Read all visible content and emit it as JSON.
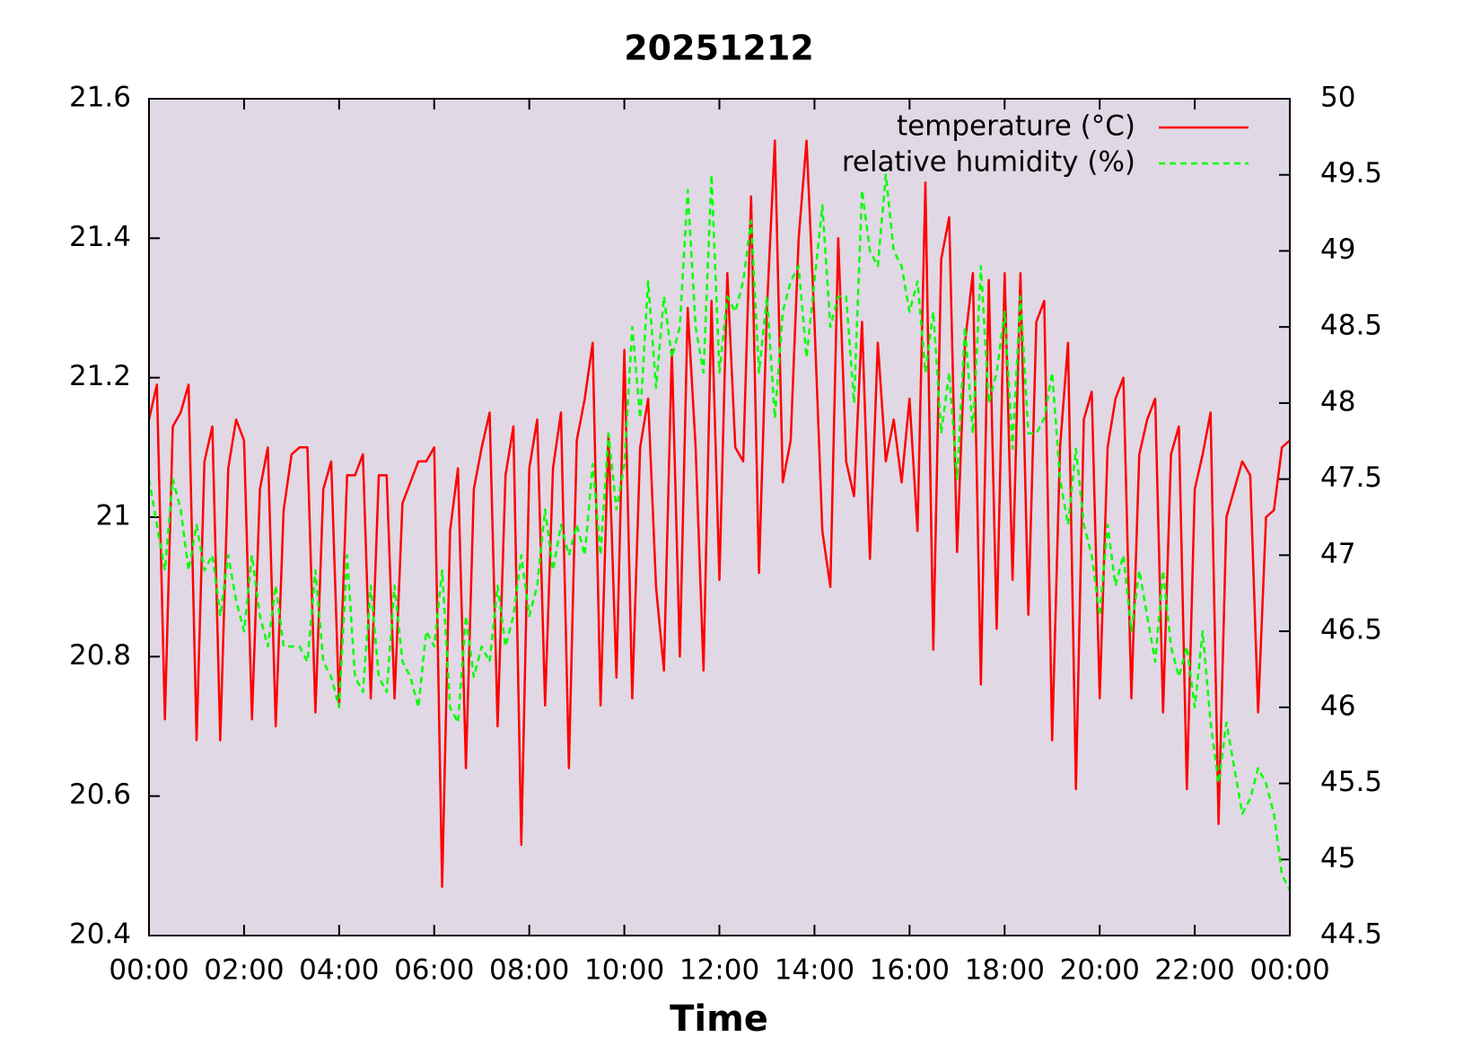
{
  "chart_data": {
    "type": "line",
    "title": "20251212",
    "xlabel": "Time",
    "x": [
      0,
      10,
      20,
      30,
      40,
      50,
      60,
      70,
      80,
      90,
      100,
      110,
      120,
      130,
      140,
      150,
      160,
      170,
      180,
      190,
      200,
      210,
      220,
      230,
      240,
      250,
      260,
      270,
      280,
      290,
      300,
      310,
      320,
      330,
      340,
      350,
      360,
      370,
      380,
      390,
      400,
      410,
      420,
      430,
      440,
      450,
      460,
      470,
      480,
      490,
      500,
      510,
      520,
      530,
      540,
      550,
      560,
      570,
      580,
      590,
      600,
      610,
      620,
      630,
      640,
      650,
      660,
      670,
      680,
      690,
      700,
      710,
      720,
      730,
      740,
      750,
      760,
      770,
      780,
      790,
      800,
      810,
      820,
      830,
      840,
      850,
      860,
      870,
      880,
      890,
      900,
      910,
      920,
      930,
      940,
      950,
      960,
      970,
      980,
      990,
      1000,
      1010,
      1020,
      1030,
      1040,
      1050,
      1060,
      1070,
      1080,
      1090,
      1100,
      1110,
      1120,
      1130,
      1140,
      1150,
      1160,
      1170,
      1180,
      1190,
      1200,
      1210,
      1220,
      1230,
      1240,
      1250,
      1260,
      1270,
      1280,
      1290,
      1300,
      1310,
      1320,
      1330,
      1340,
      1350,
      1360,
      1370,
      1380,
      1390,
      1400,
      1410,
      1420,
      1430,
      1440
    ],
    "series": [
      {
        "name": "temperature (°C)",
        "color": "#ff0000",
        "dashed": false,
        "values": [
          21.14,
          21.19,
          20.71,
          21.13,
          21.15,
          21.19,
          20.68,
          21.08,
          21.13,
          20.68,
          21.07,
          21.14,
          21.11,
          20.71,
          21.04,
          21.1,
          20.7,
          21.01,
          21.09,
          21.1,
          21.1,
          20.72,
          21.04,
          21.08,
          20.73,
          21.06,
          21.06,
          21.09,
          20.74,
          21.06,
          21.06,
          20.74,
          21.02,
          21.05,
          21.08,
          21.08,
          21.1,
          20.47,
          20.98,
          21.07,
          20.64,
          21.04,
          21.1,
          21.15,
          20.7,
          21.06,
          21.13,
          20.53,
          21.07,
          21.14,
          20.73,
          21.07,
          21.15,
          20.64,
          21.11,
          21.17,
          21.25,
          20.73,
          21.12,
          20.77,
          21.24,
          20.74,
          21.1,
          21.17,
          20.9,
          20.78,
          21.24,
          20.8,
          21.3,
          21.1,
          20.78,
          21.31,
          20.91,
          21.35,
          21.1,
          21.08,
          21.46,
          20.92,
          21.3,
          21.54,
          21.05,
          21.11,
          21.4,
          21.54,
          21.28,
          20.98,
          20.9,
          21.4,
          21.08,
          21.03,
          21.28,
          20.94,
          21.25,
          21.08,
          21.14,
          21.05,
          21.17,
          20.98,
          21.48,
          20.81,
          21.37,
          21.43,
          20.95,
          21.25,
          21.35,
          20.76,
          21.34,
          20.84,
          21.35,
          20.91,
          21.35,
          20.86,
          21.28,
          21.31,
          20.68,
          21.1,
          21.25,
          20.61,
          21.14,
          21.18,
          20.74,
          21.1,
          21.17,
          21.2,
          20.74,
          21.09,
          21.14,
          21.17,
          20.72,
          21.09,
          21.13,
          20.61,
          21.04,
          21.09,
          21.15,
          20.56,
          21.0,
          21.04,
          21.08,
          21.06,
          20.72,
          21.0,
          21.01,
          21.1,
          21.11
        ]
      },
      {
        "name": "relative humidity (%)",
        "color": "#00ff00",
        "dashed": true,
        "axis": "y2",
        "values": [
          47.5,
          47.2,
          46.9,
          47.5,
          47.3,
          46.9,
          47.2,
          46.9,
          47.0,
          46.6,
          47.0,
          46.7,
          46.5,
          47.0,
          46.6,
          46.4,
          46.8,
          46.4,
          46.4,
          46.4,
          46.3,
          46.9,
          46.3,
          46.2,
          46.0,
          47.0,
          46.2,
          46.1,
          46.8,
          46.2,
          46.1,
          46.8,
          46.3,
          46.2,
          46.0,
          46.5,
          46.4,
          46.9,
          46.0,
          45.9,
          46.6,
          46.2,
          46.4,
          46.3,
          46.8,
          46.4,
          46.6,
          47.0,
          46.6,
          46.8,
          47.3,
          46.9,
          47.2,
          47.0,
          47.2,
          47.0,
          47.6,
          47.0,
          47.8,
          47.3,
          47.6,
          48.5,
          47.9,
          48.8,
          48.1,
          48.7,
          48.3,
          48.5,
          49.4,
          48.5,
          48.2,
          49.5,
          48.2,
          48.7,
          48.6,
          48.8,
          49.2,
          48.2,
          48.7,
          47.9,
          48.6,
          48.8,
          48.9,
          48.3,
          48.8,
          49.3,
          48.5,
          48.7,
          48.7,
          48.0,
          49.4,
          49.0,
          48.9,
          49.5,
          49.0,
          48.9,
          48.6,
          48.8,
          48.2,
          48.6,
          47.8,
          48.2,
          47.5,
          48.5,
          47.8,
          48.9,
          48.0,
          48.2,
          48.6,
          47.7,
          48.7,
          47.8,
          47.8,
          47.9,
          48.2,
          47.5,
          47.2,
          47.7,
          47.2,
          47.0,
          46.6,
          47.2,
          46.8,
          47.0,
          46.5,
          46.9,
          46.6,
          46.3,
          46.9,
          46.4,
          46.2,
          46.4,
          46.0,
          46.5,
          45.9,
          45.5,
          45.9,
          45.6,
          45.3,
          45.4,
          45.6,
          45.5,
          45.3,
          44.9,
          44.8
        ]
      }
    ],
    "xlim": [
      0,
      1440
    ],
    "xticks": [
      {
        "value": 0,
        "label": "00:00"
      },
      {
        "value": 120,
        "label": "02:00"
      },
      {
        "value": 240,
        "label": "04:00"
      },
      {
        "value": 360,
        "label": "06:00"
      },
      {
        "value": 480,
        "label": "08:00"
      },
      {
        "value": 600,
        "label": "10:00"
      },
      {
        "value": 720,
        "label": "12:00"
      },
      {
        "value": 840,
        "label": "14:00"
      },
      {
        "value": 960,
        "label": "16:00"
      },
      {
        "value": 1080,
        "label": "18:00"
      },
      {
        "value": 1200,
        "label": "20:00"
      },
      {
        "value": 1320,
        "label": "22:00"
      },
      {
        "value": 1440,
        "label": "00:00"
      }
    ],
    "ylim": [
      20.4,
      21.6
    ],
    "yticks": [
      20.4,
      20.6,
      20.8,
      21,
      21.2,
      21.4,
      21.6
    ],
    "y2lim": [
      44.5,
      50
    ],
    "y2ticks": [
      44.5,
      45,
      45.5,
      46,
      46.5,
      47,
      47.5,
      48,
      48.5,
      49,
      49.5,
      50
    ],
    "background": "#e0d8e4",
    "legend": "top right"
  }
}
